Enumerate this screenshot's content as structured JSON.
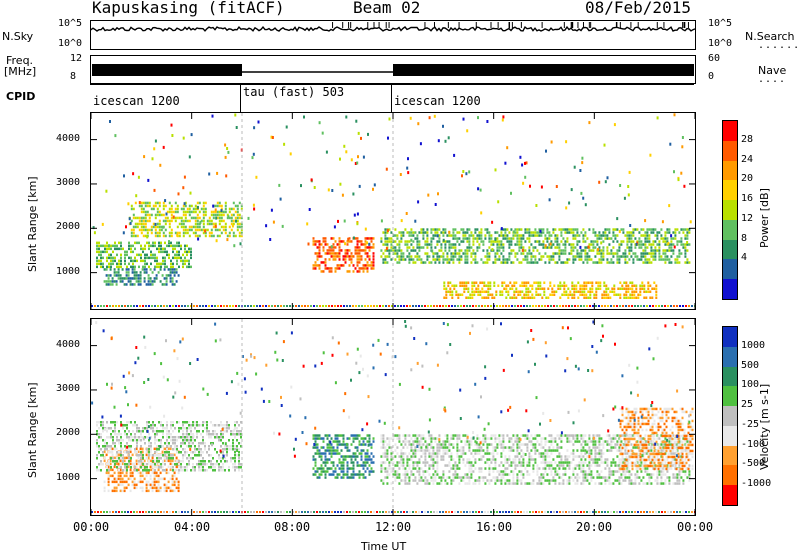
{
  "header": {
    "station": "Kapuskasing (fitACF)",
    "beam": "Beam 02",
    "date": "08/Feb/2015"
  },
  "top_strips": {
    "nsky_label": "N.Sky",
    "nsky_ticks": [
      "10^5",
      "10^0"
    ],
    "nsearch_label": "N.Search",
    "freq_label_1": "Freq.",
    "freq_label_2": "[MHz]",
    "freq_ticks": [
      "12",
      "8"
    ],
    "nave_label": "Nave",
    "nave_ticks": [
      "60",
      "0"
    ],
    "cpid_label": "CPID",
    "cpid_segments": [
      {
        "name": "icescan 1200",
        "start_h": 0,
        "end_h": 6
      },
      {
        "name": "tau (fast) 503",
        "start_h": 6,
        "end_h": 12
      },
      {
        "name": "icescan 1200",
        "start_h": 12,
        "end_h": 24
      }
    ]
  },
  "chart_data": [
    {
      "type": "heatmap",
      "title": "",
      "xlabel": "Time UT",
      "ylabel": "Slant Range [km]",
      "xlim": [
        0,
        24
      ],
      "ylim": [
        180,
        4600
      ],
      "x_ticks": [
        "00:00",
        "04:00",
        "08:00",
        "12:00",
        "16:00",
        "20:00",
        "00:00"
      ],
      "y_ticks": [
        1000,
        2000,
        3000,
        4000
      ],
      "colorbar": {
        "label": "Power [dB]",
        "ticks": [
          "28",
          "24",
          "20",
          "16",
          "12",
          "8",
          "4"
        ],
        "colors": [
          "#ff0000",
          "#ff5a00",
          "#ff9a00",
          "#ffd000",
          "#b9e000",
          "#60c060",
          "#2a9060",
          "#1f5fa0",
          "#1010d0"
        ]
      },
      "regions": [
        {
          "t0": 0.5,
          "t1": 3.5,
          "r0": 700,
          "r1": 1100,
          "level": 6
        },
        {
          "t0": 0.2,
          "t1": 4.0,
          "r0": 1100,
          "r1": 1700,
          "level": 5
        },
        {
          "t0": 1.5,
          "t1": 6.0,
          "r0": 1800,
          "r1": 2600,
          "level": 4
        },
        {
          "t0": 8.8,
          "t1": 11.2,
          "r0": 1000,
          "r1": 1800,
          "level": 1
        },
        {
          "t0": 11.5,
          "t1": 23.8,
          "r0": 1200,
          "r1": 2000,
          "level": 5
        },
        {
          "t0": 14.0,
          "t1": 22.5,
          "r0": 400,
          "r1": 800,
          "level": 3
        }
      ]
    },
    {
      "type": "heatmap",
      "title": "",
      "xlabel": "Time UT",
      "ylabel": "Slant Range [km]",
      "xlim": [
        0,
        24
      ],
      "ylim": [
        180,
        4600
      ],
      "x_ticks": [
        "00:00",
        "04:00",
        "08:00",
        "12:00",
        "16:00",
        "20:00",
        "00:00"
      ],
      "y_ticks": [
        1000,
        2000,
        3000,
        4000
      ],
      "colorbar": {
        "label": "Velocity [m s-1]",
        "ticks": [
          "1000",
          "500",
          "100",
          "25",
          "-25",
          "-100",
          "-500",
          "-1000"
        ],
        "colors": [
          "#1030c0",
          "#2a6fb0",
          "#2a9060",
          "#4fc040",
          "#bfbfbf",
          "#e8e8e8",
          "#ffa030",
          "#ff7000",
          "#ff0000"
        ]
      },
      "regions": [
        {
          "t0": 0.5,
          "t1": 3.5,
          "r0": 700,
          "r1": 1700,
          "level": 6
        },
        {
          "t0": 0.2,
          "t1": 6.0,
          "r0": 1200,
          "r1": 2300,
          "level": 4
        },
        {
          "t0": 8.8,
          "t1": 11.2,
          "r0": 1000,
          "r1": 2000,
          "level": 2
        },
        {
          "t0": 11.5,
          "t1": 23.8,
          "r0": 900,
          "r1": 2000,
          "level": 4
        },
        {
          "t0": 21.0,
          "t1": 23.9,
          "r0": 1200,
          "r1": 2600,
          "level": 6
        }
      ]
    }
  ]
}
